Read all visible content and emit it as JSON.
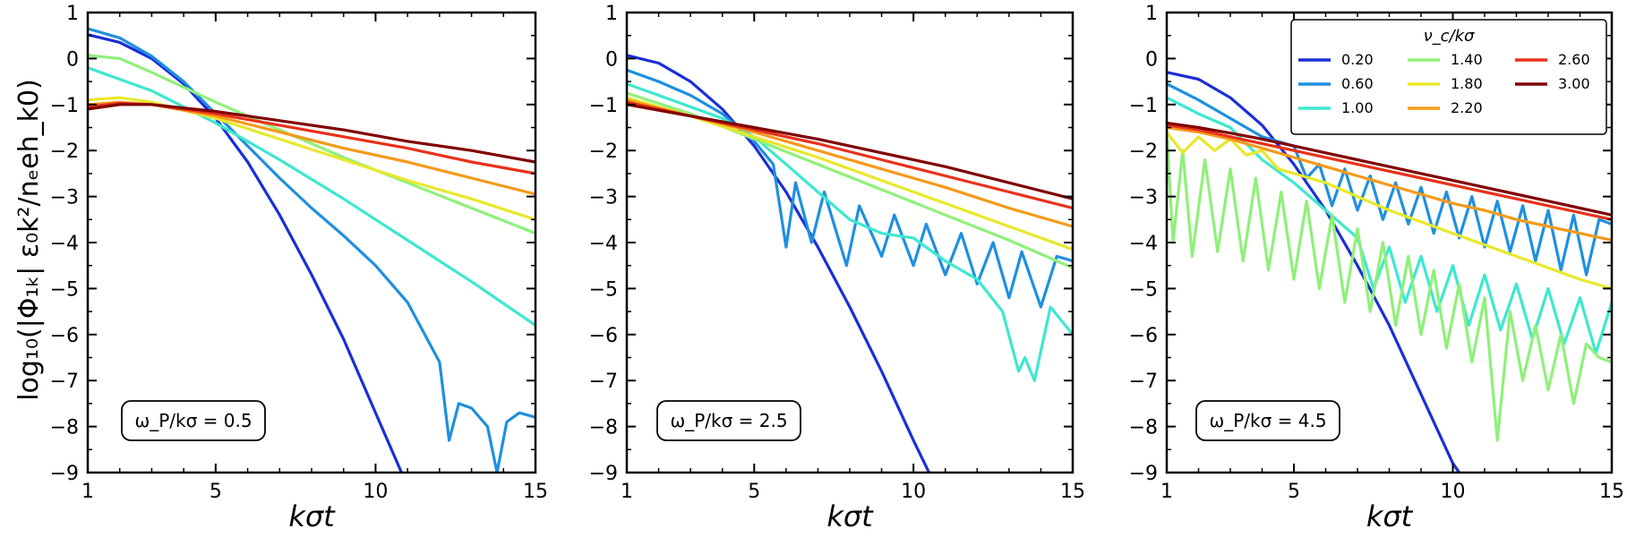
{
  "figure": {
    "y_label": "log₁₀(|Φ₁ₖ| ε₀k²/nₑeh_k0)",
    "x_label": "kσt",
    "legend_title": "ν_c/kσ"
  },
  "chart_data": [
    {
      "type": "line",
      "annotation": "ω_P/kσ = 0.5",
      "xlabel": "kσt",
      "ylabel": "log₁₀(|Φ₁ₖ| ε₀k²/nₑeh_k0)",
      "xlim": [
        1,
        15
      ],
      "ylim": [
        -9,
        1
      ],
      "xticks": [
        1,
        5,
        10,
        15
      ],
      "yticks": [
        1,
        0,
        -1,
        -2,
        -3,
        -4,
        -5,
        -6,
        -7,
        -8,
        -9
      ],
      "grid": false,
      "series": [
        {
          "name": "0.20",
          "color": "#1a2fd6",
          "x": [
            1,
            2,
            3,
            4,
            5,
            6,
            7,
            8,
            9,
            10,
            11
          ],
          "y": [
            0.52,
            0.35,
            0.0,
            -0.55,
            -1.3,
            -2.25,
            -3.4,
            -4.7,
            -6.1,
            -7.7,
            -9.3
          ]
        },
        {
          "name": "0.60",
          "color": "#1f8fe0",
          "x": [
            1,
            2,
            3,
            4,
            5,
            6,
            7,
            8,
            9,
            10,
            11,
            12,
            12.3,
            12.6,
            13,
            13.5,
            13.8,
            14.1,
            14.5,
            15
          ],
          "y": [
            0.65,
            0.45,
            0.05,
            -0.5,
            -1.2,
            -1.9,
            -2.6,
            -3.25,
            -3.85,
            -4.5,
            -5.3,
            -6.6,
            -8.3,
            -7.5,
            -7.6,
            -8.0,
            -9.0,
            -7.9,
            -7.7,
            -7.8
          ]
        },
        {
          "name": "1.00",
          "color": "#3de8d0",
          "x": [
            1,
            3,
            5,
            7,
            9,
            11,
            13,
            15
          ],
          "y": [
            -0.2,
            -0.7,
            -1.4,
            -2.2,
            -3.05,
            -3.95,
            -4.85,
            -5.8
          ]
        },
        {
          "name": "1.40",
          "color": "#8ff07a",
          "x": [
            1,
            2,
            3,
            5,
            7,
            9,
            11,
            13,
            15
          ],
          "y": [
            0.07,
            0.0,
            -0.3,
            -0.95,
            -1.55,
            -2.15,
            -2.7,
            -3.25,
            -3.8
          ]
        },
        {
          "name": "1.80",
          "color": "#e8e82a",
          "x": [
            1,
            2,
            3,
            5,
            7,
            9,
            11,
            13,
            15
          ],
          "y": [
            -0.9,
            -0.85,
            -0.95,
            -1.3,
            -1.75,
            -2.2,
            -2.65,
            -3.05,
            -3.5
          ]
        },
        {
          "name": "2.20",
          "color": "#f59a1a",
          "x": [
            1,
            2,
            3,
            5,
            7,
            9,
            11,
            13,
            15
          ],
          "y": [
            -1.0,
            -0.95,
            -1.0,
            -1.25,
            -1.6,
            -1.95,
            -2.25,
            -2.6,
            -2.95
          ]
        },
        {
          "name": "2.60",
          "color": "#e8321a",
          "x": [
            1,
            2,
            3,
            5,
            7,
            9,
            11,
            13,
            15
          ],
          "y": [
            -1.05,
            -0.97,
            -1.0,
            -1.2,
            -1.45,
            -1.7,
            -1.95,
            -2.25,
            -2.5
          ]
        },
        {
          "name": "3.00",
          "color": "#800000",
          "x": [
            1,
            2,
            3,
            5,
            7,
            9,
            11,
            13,
            15
          ],
          "y": [
            -1.1,
            -1.0,
            -1.0,
            -1.15,
            -1.35,
            -1.55,
            -1.8,
            -2.0,
            -2.25
          ]
        }
      ]
    },
    {
      "type": "line",
      "annotation": "ω_P/kσ = 2.5",
      "xlabel": "kσt",
      "xlim": [
        1,
        15
      ],
      "ylim": [
        -9,
        1
      ],
      "xticks": [
        1,
        5,
        10,
        15
      ],
      "yticks": [
        1,
        0,
        -1,
        -2,
        -3,
        -4,
        -5,
        -6,
        -7,
        -8,
        -9
      ],
      "grid": false,
      "series": [
        {
          "name": "0.20",
          "color": "#1a2fd6",
          "x": [
            1,
            2,
            3,
            4,
            5,
            6,
            7,
            8,
            9,
            10,
            10.7
          ],
          "y": [
            0.07,
            -0.1,
            -0.5,
            -1.1,
            -1.9,
            -2.9,
            -4.1,
            -5.4,
            -6.8,
            -8.3,
            -9.3
          ]
        },
        {
          "name": "0.60",
          "color": "#1f8fe0",
          "x": [
            1,
            2,
            3,
            4,
            5,
            5.6,
            6.0,
            6.3,
            6.8,
            7.2,
            7.9,
            8.3,
            9.0,
            9.4,
            10.0,
            10.4,
            11.0,
            11.5,
            12.0,
            12.5,
            13.0,
            13.4,
            14.0,
            14.5,
            15
          ],
          "y": [
            -0.25,
            -0.5,
            -0.8,
            -1.2,
            -1.8,
            -2.3,
            -4.1,
            -2.7,
            -4.0,
            -2.9,
            -4.5,
            -3.2,
            -4.3,
            -3.4,
            -4.5,
            -3.6,
            -4.7,
            -3.8,
            -4.9,
            -4.0,
            -5.2,
            -4.2,
            -5.4,
            -4.3,
            -4.4
          ]
        },
        {
          "name": "1.00",
          "color": "#3de8d0",
          "x": [
            1,
            2,
            3,
            4,
            5,
            6,
            7,
            8,
            9,
            10,
            11,
            12,
            12.8,
            13.3,
            13.5,
            13.8,
            14.3,
            15
          ],
          "y": [
            -0.55,
            -0.8,
            -1.05,
            -1.3,
            -1.7,
            -2.3,
            -2.9,
            -3.5,
            -3.8,
            -3.9,
            -4.4,
            -4.8,
            -5.5,
            -6.8,
            -6.5,
            -7.0,
            -5.4,
            -6.0
          ]
        },
        {
          "name": "1.40",
          "color": "#8ff07a",
          "x": [
            1,
            3,
            5,
            7,
            9,
            11,
            13,
            15
          ],
          "y": [
            -0.75,
            -1.2,
            -1.75,
            -2.3,
            -2.85,
            -3.4,
            -3.95,
            -4.55
          ]
        },
        {
          "name": "1.80",
          "color": "#e8e82a",
          "x": [
            1,
            3,
            5,
            7,
            9,
            11,
            13,
            15
          ],
          "y": [
            -0.85,
            -1.25,
            -1.7,
            -2.15,
            -2.65,
            -3.15,
            -3.65,
            -4.15
          ]
        },
        {
          "name": "2.20",
          "color": "#f59a1a",
          "x": [
            1,
            3,
            5,
            7,
            9,
            11,
            13,
            15
          ],
          "y": [
            -0.9,
            -1.25,
            -1.6,
            -2.0,
            -2.4,
            -2.8,
            -3.25,
            -3.65
          ]
        },
        {
          "name": "2.60",
          "color": "#e8321a",
          "x": [
            1,
            3,
            5,
            7,
            9,
            11,
            13,
            15
          ],
          "y": [
            -0.95,
            -1.25,
            -1.55,
            -1.85,
            -2.2,
            -2.55,
            -2.9,
            -3.25
          ]
        },
        {
          "name": "3.00",
          "color": "#800000",
          "x": [
            1,
            3,
            5,
            7,
            9,
            11,
            13,
            15
          ],
          "y": [
            -1.0,
            -1.25,
            -1.5,
            -1.75,
            -2.05,
            -2.35,
            -2.7,
            -3.05
          ]
        }
      ]
    },
    {
      "type": "line",
      "annotation": "ω_P/kσ = 4.5",
      "xlabel": "kσt",
      "xlim": [
        1,
        15
      ],
      "ylim": [
        -9,
        1
      ],
      "xticks": [
        1,
        5,
        10,
        15
      ],
      "yticks": [
        1,
        0,
        -1,
        -2,
        -3,
        -4,
        -5,
        -6,
        -7,
        -8,
        -9
      ],
      "grid": false,
      "series": [
        {
          "name": "0.20",
          "color": "#1a2fd6",
          "x": [
            1,
            2,
            3,
            4,
            5,
            6,
            7,
            8,
            9,
            10,
            10.5
          ],
          "y": [
            -0.3,
            -0.45,
            -0.85,
            -1.45,
            -2.3,
            -3.3,
            -4.5,
            -5.8,
            -7.3,
            -8.8,
            -9.3
          ]
        },
        {
          "name": "0.60",
          "color": "#1f8fe0",
          "x": [
            1,
            2,
            3,
            4,
            5,
            5.4,
            5.8,
            6.2,
            6.6,
            7.0,
            7.4,
            7.8,
            8.2,
            8.6,
            9.0,
            9.4,
            9.8,
            10.2,
            10.6,
            11.0,
            11.4,
            11.8,
            12.2,
            12.6,
            13.0,
            13.4,
            13.8,
            14.2,
            14.6,
            15
          ],
          "y": [
            -0.55,
            -0.9,
            -1.3,
            -1.7,
            -1.9,
            -2.6,
            -2.3,
            -3.2,
            -2.4,
            -3.3,
            -2.55,
            -3.5,
            -2.7,
            -3.6,
            -2.8,
            -3.8,
            -2.9,
            -3.9,
            -3.0,
            -4.1,
            -3.1,
            -4.2,
            -3.2,
            -4.4,
            -3.3,
            -4.6,
            -3.4,
            -4.7,
            -3.5,
            -3.6
          ]
        },
        {
          "name": "1.00",
          "color": "#3de8d0",
          "x": [
            1,
            2,
            3,
            4,
            5,
            6,
            7,
            7.5,
            8,
            8.5,
            9,
            9.5,
            10,
            10.5,
            11,
            11.5,
            12,
            12.5,
            13,
            13.5,
            14,
            14.5,
            15
          ],
          "y": [
            -0.85,
            -1.2,
            -1.5,
            -2.2,
            -2.7,
            -3.3,
            -3.9,
            -5.0,
            -4.1,
            -5.3,
            -4.3,
            -5.5,
            -4.5,
            -5.8,
            -4.7,
            -5.9,
            -4.9,
            -6.1,
            -5.0,
            -6.2,
            -5.2,
            -6.4,
            -5.3
          ]
        },
        {
          "name": "1.40",
          "color": "#8ff07a",
          "x": [
            1,
            1.2,
            1.5,
            1.8,
            2.2,
            2.6,
            3.0,
            3.4,
            3.8,
            4.2,
            4.6,
            5.0,
            5.4,
            5.8,
            6.2,
            6.6,
            7.0,
            7.4,
            7.8,
            8.2,
            8.6,
            9.0,
            9.4,
            9.8,
            10.2,
            10.6,
            11.0,
            11.4,
            11.8,
            12.2,
            12.6,
            13.0,
            13.4,
            13.8,
            14.2,
            14.6,
            15
          ],
          "y": [
            -1.6,
            -4.0,
            -2.0,
            -4.3,
            -2.2,
            -4.2,
            -2.4,
            -4.4,
            -2.6,
            -4.6,
            -2.9,
            -4.8,
            -3.1,
            -5.0,
            -3.4,
            -5.3,
            -3.7,
            -5.5,
            -4.0,
            -5.8,
            -4.3,
            -6.0,
            -4.6,
            -6.3,
            -4.9,
            -6.6,
            -5.2,
            -8.3,
            -5.5,
            -7.0,
            -5.8,
            -7.2,
            -6.0,
            -7.5,
            -6.2,
            -6.5,
            -6.6
          ]
        },
        {
          "name": "1.80",
          "color": "#e8e82a",
          "x": [
            1,
            1.5,
            2,
            2.5,
            3,
            3.5,
            4,
            4.5,
            5,
            6,
            7,
            8,
            9,
            10,
            11,
            12,
            13,
            14,
            15
          ],
          "y": [
            -1.6,
            -2.05,
            -1.7,
            -2.0,
            -1.75,
            -2.1,
            -2.0,
            -2.4,
            -2.5,
            -2.7,
            -3.0,
            -3.3,
            -3.55,
            -3.8,
            -4.05,
            -4.3,
            -4.55,
            -4.8,
            -5.0
          ]
        },
        {
          "name": "2.20",
          "color": "#f59a1a",
          "x": [
            1,
            2,
            3,
            4,
            5,
            6,
            7,
            8,
            9,
            10,
            11,
            12,
            13,
            14,
            15
          ],
          "y": [
            -1.5,
            -1.6,
            -1.75,
            -1.95,
            -2.15,
            -2.35,
            -2.55,
            -2.75,
            -2.95,
            -3.15,
            -3.3,
            -3.5,
            -3.65,
            -3.8,
            -3.95
          ]
        },
        {
          "name": "2.60",
          "color": "#e8321a",
          "x": [
            1,
            2,
            3,
            4,
            5,
            6,
            7,
            8,
            9,
            10,
            11,
            12,
            13,
            14,
            15
          ],
          "y": [
            -1.45,
            -1.55,
            -1.7,
            -1.85,
            -2.0,
            -2.15,
            -2.3,
            -2.45,
            -2.6,
            -2.75,
            -2.9,
            -3.05,
            -3.2,
            -3.35,
            -3.5
          ]
        },
        {
          "name": "3.00",
          "color": "#800000",
          "x": [
            1,
            2,
            3,
            4,
            5,
            6,
            7,
            8,
            9,
            10,
            11,
            12,
            13,
            14,
            15
          ],
          "y": [
            -1.4,
            -1.5,
            -1.62,
            -1.75,
            -1.9,
            -2.05,
            -2.2,
            -2.35,
            -2.5,
            -2.65,
            -2.8,
            -2.95,
            -3.1,
            -3.25,
            -3.4
          ]
        }
      ],
      "legend": {
        "title": "ν_c/kσ",
        "placement": "top-right",
        "columns": 3
      }
    }
  ]
}
